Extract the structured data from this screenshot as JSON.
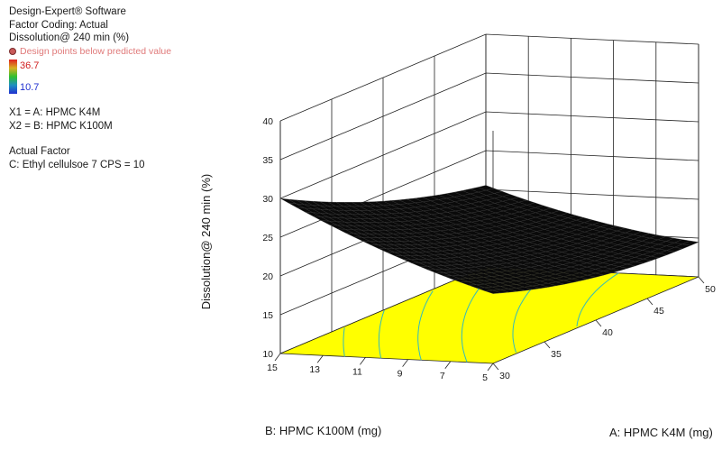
{
  "legend": {
    "software": "Design-Expert® Software",
    "coding": "Factor Coding: Actual",
    "response": "Dissolution@ 240 min (%)",
    "design_points": "Design points below predicted value",
    "color_max": "36.7",
    "color_min": "10.7",
    "x1": "X1 = A: HPMC K4M",
    "x2": "X2 = B: HPMC K100M",
    "actual_factor_title": "Actual Factor",
    "actual_factor": "C: Ethyl cellulsoe 7 CPS = 10"
  },
  "colors": {
    "floor": "#ffff00",
    "surface": "#0a0a0a",
    "contour": "#33bbbb",
    "grid": "#222222"
  },
  "chart_data": {
    "type": "surface",
    "title": "",
    "zlabel": "Dissolution@ 240 min (%)",
    "xlabel": "A: HPMC K4M (mg)",
    "ylabel": "B: HPMC K100M (mg)",
    "x_ticks": [
      "30",
      "35",
      "40",
      "45",
      "50"
    ],
    "y_ticks": [
      "5",
      "7",
      "9",
      "11",
      "13",
      "15"
    ],
    "z_ticks": [
      "10",
      "15",
      "20",
      "25",
      "30",
      "35",
      "40"
    ],
    "xlim": [
      30,
      50
    ],
    "ylim": [
      5,
      15
    ],
    "zlim": [
      10,
      40
    ],
    "surface_points": [
      {
        "A": 30,
        "B": 15,
        "value": 34
      },
      {
        "A": 30,
        "B": 5,
        "value": 19
      },
      {
        "A": 50,
        "B": 15,
        "value": 22
      },
      {
        "A": 50,
        "B": 5,
        "value": 15
      },
      {
        "A": 40,
        "B": 10,
        "value": 19
      }
    ]
  }
}
